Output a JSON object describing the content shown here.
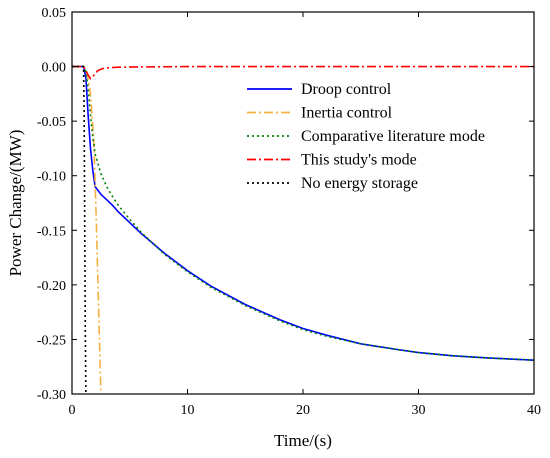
{
  "chart_data": {
    "type": "line",
    "xlabel": "Time/(s)",
    "ylabel": "Power Change/(MW)",
    "xlim": [
      0,
      40
    ],
    "ylim": [
      -0.3,
      0.05
    ],
    "xticks": [
      0,
      10,
      20,
      30,
      40
    ],
    "yticks": [
      0.05,
      0.0,
      -0.05,
      -0.1,
      -0.15,
      -0.2,
      -0.25,
      -0.3
    ],
    "ytick_labels": [
      "0.05",
      "0.00",
      "-0.05",
      "-0.10",
      "-0.15",
      "-0.20",
      "-0.25",
      "-0.30"
    ],
    "grid": false,
    "legend_position": "upper-right",
    "series": [
      {
        "name": "Droop control",
        "color": "#0000ff",
        "style": "solid",
        "x": [
          0,
          1.0,
          1.2,
          1.4,
          1.6,
          1.8,
          2.0,
          2.5,
          3.0,
          3.5,
          4,
          5,
          6,
          7,
          8,
          10,
          12,
          15,
          18,
          20,
          22,
          25,
          28,
          30,
          33,
          36,
          40
        ],
        "y": [
          0,
          0,
          -0.01,
          -0.045,
          -0.075,
          -0.095,
          -0.11,
          -0.117,
          -0.122,
          -0.127,
          -0.133,
          -0.143,
          -0.153,
          -0.162,
          -0.171,
          -0.187,
          -0.201,
          -0.218,
          -0.232,
          -0.24,
          -0.246,
          -0.254,
          -0.259,
          -0.262,
          -0.265,
          -0.267,
          -0.269
        ]
      },
      {
        "name": "Inertia control",
        "color": "#f5b041",
        "style": "dashdot",
        "x": [
          0,
          1.0,
          1.3,
          1.6,
          1.9,
          2.1,
          2.3,
          2.5
        ],
        "y": [
          0,
          0,
          -0.005,
          -0.025,
          -0.07,
          -0.14,
          -0.22,
          -0.3
        ]
      },
      {
        "name": "Comparative literature mode",
        "color": "#008000",
        "style": "dotted",
        "x": [
          0,
          1.0,
          1.2,
          1.4,
          1.6,
          1.8,
          2.0,
          2.5,
          3.0,
          3.5,
          4,
          5,
          6,
          7,
          8,
          10,
          12,
          15,
          18,
          20,
          22,
          25,
          28,
          30,
          33,
          36,
          40
        ],
        "y": [
          0,
          0,
          -0.005,
          -0.02,
          -0.045,
          -0.065,
          -0.08,
          -0.098,
          -0.11,
          -0.119,
          -0.127,
          -0.14,
          -0.152,
          -0.162,
          -0.172,
          -0.188,
          -0.202,
          -0.219,
          -0.233,
          -0.241,
          -0.247,
          -0.254,
          -0.259,
          -0.262,
          -0.265,
          -0.267,
          -0.269
        ]
      },
      {
        "name": "This study's mode",
        "color": "#ff0000",
        "style": "dashdot",
        "x": [
          0,
          1.0,
          1.3,
          1.6,
          1.9,
          2.2,
          2.6,
          3.0,
          4,
          6,
          10,
          20,
          30,
          40
        ],
        "y": [
          0,
          0,
          -0.006,
          -0.011,
          -0.008,
          -0.004,
          -0.002,
          -0.0012,
          -0.0006,
          -0.0003,
          0,
          0,
          0,
          0
        ]
      },
      {
        "name": "No energy storage",
        "color": "#000000",
        "style": "dotted",
        "x": [
          0,
          1.0,
          1.05,
          1.1,
          1.15,
          1.2
        ],
        "y": [
          0,
          0,
          -0.04,
          -0.14,
          -0.24,
          -0.3
        ]
      }
    ]
  }
}
